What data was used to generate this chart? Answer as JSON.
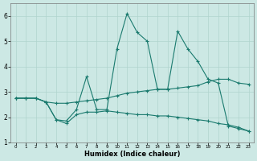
{
  "xlabel": "Humidex (Indice chaleur)",
  "xlim": [
    -0.5,
    23.5
  ],
  "ylim": [
    1,
    6.5
  ],
  "yticks": [
    1,
    2,
    3,
    4,
    5,
    6
  ],
  "xticks": [
    0,
    1,
    2,
    3,
    4,
    5,
    6,
    7,
    8,
    9,
    10,
    11,
    12,
    13,
    14,
    15,
    16,
    17,
    18,
    19,
    20,
    21,
    22,
    23
  ],
  "bg_color": "#cce8e4",
  "grid_color": "#b0d4ce",
  "line_color": "#1a7a6e",
  "line1_x": [
    0,
    1,
    2,
    3,
    4,
    5,
    6,
    7,
    8,
    9,
    10,
    11,
    12,
    13,
    14,
    15,
    16,
    17,
    18,
    19,
    20,
    21,
    22,
    23
  ],
  "line1_y": [
    2.75,
    2.75,
    2.75,
    2.6,
    1.9,
    1.85,
    2.3,
    3.6,
    2.3,
    2.3,
    4.7,
    6.1,
    5.35,
    5.0,
    3.1,
    3.1,
    5.4,
    4.7,
    4.2,
    3.5,
    3.35,
    1.65,
    1.55,
    1.45
  ],
  "line2_x": [
    0,
    1,
    2,
    3,
    4,
    5,
    6,
    7,
    8,
    9,
    10,
    11,
    12,
    13,
    14,
    15,
    16,
    17,
    18,
    19,
    20,
    21,
    22,
    23
  ],
  "line2_y": [
    2.75,
    2.75,
    2.75,
    2.6,
    2.55,
    2.55,
    2.6,
    2.65,
    2.7,
    2.75,
    2.85,
    2.95,
    3.0,
    3.05,
    3.1,
    3.1,
    3.15,
    3.2,
    3.25,
    3.4,
    3.5,
    3.5,
    3.35,
    3.3
  ],
  "line3_x": [
    0,
    1,
    2,
    3,
    4,
    5,
    6,
    7,
    8,
    9,
    10,
    11,
    12,
    13,
    14,
    15,
    16,
    17,
    18,
    19,
    20,
    21,
    22,
    23
  ],
  "line3_y": [
    2.75,
    2.75,
    2.75,
    2.6,
    1.9,
    1.75,
    2.1,
    2.2,
    2.2,
    2.25,
    2.2,
    2.15,
    2.1,
    2.1,
    2.05,
    2.05,
    2.0,
    1.95,
    1.9,
    1.85,
    1.75,
    1.7,
    1.6,
    1.45
  ]
}
